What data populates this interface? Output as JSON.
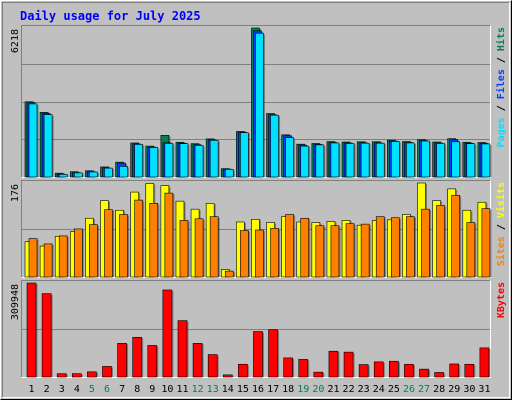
{
  "title": "Daily usage for July 2025",
  "colors": {
    "hits": "#00805c",
    "files": "#0040ff",
    "pages": "#00e0ff",
    "visits": "#ffff00",
    "sites": "#ff8000",
    "kbytes": "#ff0000",
    "title": "#0000ff",
    "weekend_day": "#00805c",
    "weekday": "#000000",
    "plot_bg": "#c0c0c0"
  },
  "chart_data": [
    {
      "type": "bar",
      "name": "hits-files-pages",
      "max_label": "6218",
      "ymax": 6218,
      "legend": [
        "Pages",
        "/",
        "Files",
        "/",
        "Hits"
      ],
      "categories": [
        "1",
        "2",
        "3",
        "4",
        "5",
        "6",
        "7",
        "8",
        "9",
        "10",
        "11",
        "12",
        "13",
        "14",
        "15",
        "16",
        "17",
        "18",
        "19",
        "20",
        "21",
        "22",
        "23",
        "24",
        "25",
        "26",
        "27",
        "28",
        "29",
        "30",
        "31"
      ],
      "series": [
        {
          "name": "Hits",
          "values": [
            3140,
            2700,
            160,
            220,
            260,
            420,
            620,
            1420,
            1290,
            1740,
            1450,
            1390,
            1590,
            350,
            1900,
            6218,
            2650,
            1760,
            1370,
            1400,
            1480,
            1460,
            1470,
            1470,
            1540,
            1480,
            1560,
            1460,
            1600,
            1450,
            1440
          ]
        },
        {
          "name": "Files",
          "values": [
            3100,
            2650,
            120,
            180,
            220,
            380,
            580,
            1380,
            1250,
            1430,
            1410,
            1350,
            1550,
            330,
            1870,
            6100,
            2600,
            1720,
            1330,
            1360,
            1440,
            1420,
            1430,
            1430,
            1500,
            1440,
            1520,
            1420,
            1560,
            1410,
            1400
          ]
        },
        {
          "name": "Pages",
          "values": [
            3050,
            2600,
            110,
            170,
            210,
            370,
            440,
            1360,
            1230,
            1400,
            1390,
            1320,
            1530,
            320,
            1850,
            6000,
            2580,
            1640,
            1290,
            1340,
            1420,
            1400,
            1410,
            1410,
            1480,
            1420,
            1500,
            1400,
            1470,
            1390,
            1380
          ]
        }
      ]
    },
    {
      "type": "bar",
      "name": "visits-sites",
      "max_label": "176",
      "ymax": 176,
      "legend": [
        "Sites",
        "/",
        "Visits"
      ],
      "categories": [
        "1",
        "2",
        "3",
        "4",
        "5",
        "6",
        "7",
        "8",
        "9",
        "10",
        "11",
        "12",
        "13",
        "14",
        "15",
        "16",
        "17",
        "18",
        "19",
        "20",
        "21",
        "22",
        "23",
        "24",
        "25",
        "26",
        "27",
        "28",
        "29",
        "30",
        "31"
      ],
      "series": [
        {
          "name": "Visits",
          "values": [
            66,
            58,
            76,
            85,
            110,
            143,
            125,
            159,
            175,
            171,
            142,
            127,
            138,
            14,
            103,
            108,
            102,
            113,
            103,
            102,
            104,
            106,
            97,
            106,
            107,
            117,
            176,
            143,
            165,
            125,
            140
          ]
        },
        {
          "name": "Sites",
          "values": [
            72,
            62,
            77,
            90,
            98,
            126,
            117,
            144,
            138,
            157,
            106,
            109,
            113,
            11,
            87,
            88,
            91,
            117,
            110,
            96,
            96,
            100,
            99,
            113,
            111,
            113,
            127,
            134,
            153,
            102,
            128
          ]
        }
      ]
    },
    {
      "type": "bar",
      "name": "kbytes",
      "max_label": "309948",
      "ymax": 309948,
      "legend": [
        "KBytes"
      ],
      "categories": [
        "1",
        "2",
        "3",
        "4",
        "5",
        "6",
        "7",
        "8",
        "9",
        "10",
        "11",
        "12",
        "13",
        "14",
        "15",
        "16",
        "17",
        "18",
        "19",
        "20",
        "21",
        "22",
        "23",
        "24",
        "25",
        "26",
        "27",
        "28",
        "29",
        "30",
        "31"
      ],
      "series": [
        {
          "name": "KBytes",
          "values": [
            309948,
            275000,
            11000,
            11000,
            17000,
            35000,
            111000,
            131000,
            104000,
            287000,
            186000,
            111000,
            74000,
            7000,
            42000,
            150000,
            156000,
            63000,
            58000,
            16000,
            85000,
            82000,
            41000,
            50000,
            52000,
            42000,
            26000,
            15000,
            43000,
            42000,
            96000
          ]
        }
      ]
    }
  ],
  "weekend_days": [
    "5",
    "6",
    "12",
    "13",
    "19",
    "20",
    "26",
    "27"
  ]
}
